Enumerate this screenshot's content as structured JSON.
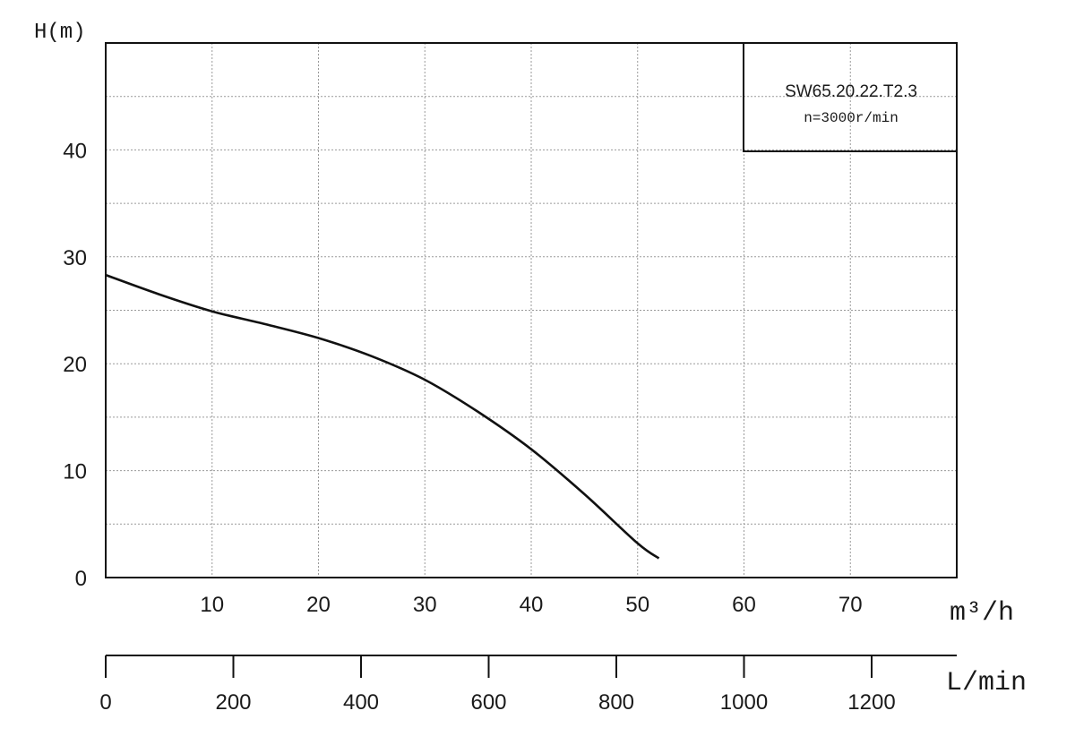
{
  "chart_data": {
    "type": "line",
    "ylabel": "H(m)",
    "xlabel": "m³/h",
    "xlabel_secondary": "L/min",
    "xlim": [
      0,
      80
    ],
    "ylim": [
      0,
      50
    ],
    "xlim_secondary": [
      0,
      1333.33
    ],
    "x_ticks": [
      10,
      20,
      30,
      40,
      50,
      60,
      70
    ],
    "y_ticks": [
      0,
      10,
      20,
      30,
      40
    ],
    "x_ticks_secondary": [
      0,
      200,
      400,
      600,
      800,
      1000,
      1200
    ],
    "grid": true,
    "legend_box": {
      "line1": "SW65.20.22.T2.3",
      "line2": "n=3000r/min",
      "placement": "top-right"
    },
    "series": [
      {
        "x": [
          0,
          5,
          10,
          15,
          20,
          25,
          30,
          35,
          40,
          45,
          50,
          52
        ],
        "y": [
          28.3,
          26.5,
          24.9,
          23.7,
          22.4,
          20.7,
          18.5,
          15.5,
          12.0,
          7.8,
          3.2,
          1.8
        ]
      }
    ]
  }
}
